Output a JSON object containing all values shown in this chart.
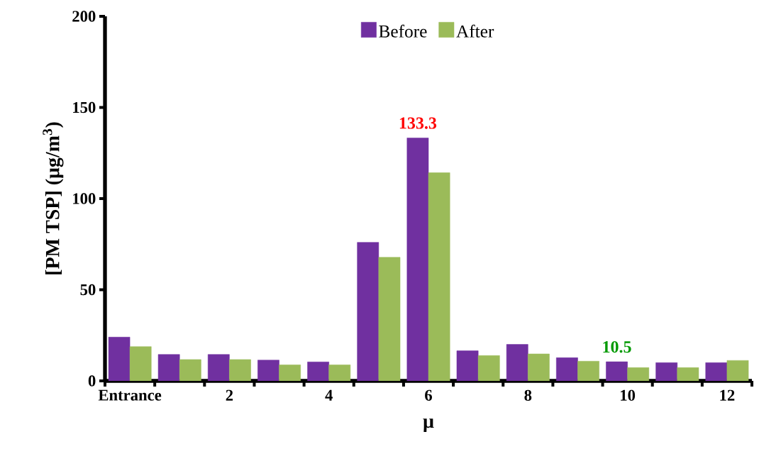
{
  "chart_data": {
    "type": "bar",
    "xlabel": "μ",
    "ylabel": "[PM TSP] (μg/m$^{3}$)",
    "categories": [
      "Entrance",
      null,
      "2",
      null,
      "4",
      null,
      "6",
      null,
      "8",
      null,
      "10",
      null,
      "12"
    ],
    "series": [
      {
        "name": "Before",
        "color": "#7030a0",
        "values": [
          24,
          14.5,
          14.5,
          11.4,
          10.4,
          76,
          133.3,
          16.5,
          20,
          12.7,
          10.5,
          10,
          10
        ],
        "value_labels": [
          null,
          null,
          null,
          null,
          null,
          null,
          "133.3",
          null,
          null,
          null,
          "10.5",
          null,
          null
        ]
      },
      {
        "name": "After",
        "color": "#9bbb59",
        "values": [
          18.8,
          11.7,
          11.7,
          8.8,
          8.8,
          67.8,
          114.2,
          13.9,
          14.8,
          10.8,
          7.3,
          7.3,
          11.2
        ]
      }
    ],
    "ylim": [
      0,
      200
    ],
    "yticks": [
      0,
      50,
      100,
      150,
      200
    ],
    "grid": false,
    "legend": "top"
  }
}
